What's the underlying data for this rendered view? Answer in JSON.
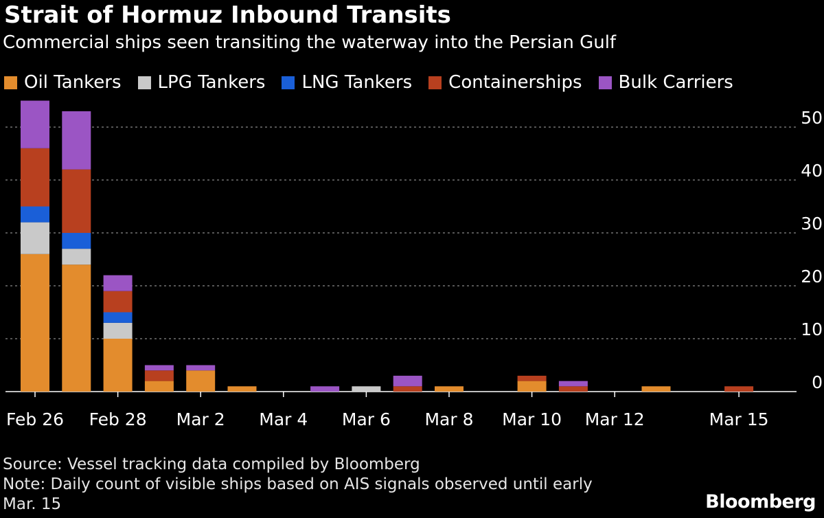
{
  "chart_data": {
    "type": "bar",
    "stacked": true,
    "title": "Strait of Hormuz Inbound Transits",
    "subtitle": "Commercial ships seen transiting the waterway into the Persian Gulf",
    "xlabel": "",
    "ylabel": "",
    "ylim": [
      0,
      55
    ],
    "y_ticks": [
      0,
      10,
      20,
      30,
      40,
      50
    ],
    "grid": true,
    "legend_position": "top",
    "categories": [
      "Feb 26",
      "Feb 27",
      "Feb 28",
      "Mar 1",
      "Mar 2",
      "Mar 3",
      "Mar 4",
      "Mar 5",
      "Mar 6",
      "Mar 7",
      "Mar 8",
      "Mar 9",
      "Mar 10",
      "Mar 11",
      "Mar 12",
      "Mar 13",
      "Mar 14",
      "Mar 15"
    ],
    "x_tick_labels": [
      "Feb 26",
      "Feb 28",
      "Mar 2",
      "Mar 4",
      "Mar 6",
      "Mar 8",
      "Mar 10",
      "Mar 12",
      "Mar 15"
    ],
    "series": [
      {
        "name": "Oil Tankers",
        "color": "#e38c2d",
        "values": [
          26,
          24,
          10,
          2,
          4,
          1,
          0,
          0,
          0,
          0,
          1,
          0,
          2,
          0,
          0,
          1,
          0,
          0
        ]
      },
      {
        "name": "LPG Tankers",
        "color": "#c9c9c9",
        "values": [
          6,
          3,
          3,
          0,
          0,
          0,
          0,
          0,
          1,
          0,
          0,
          0,
          0,
          0,
          0,
          0,
          0,
          0
        ]
      },
      {
        "name": "LNG Tankers",
        "color": "#1a5fd8",
        "values": [
          3,
          3,
          2,
          0,
          0,
          0,
          0,
          0,
          0,
          0,
          0,
          0,
          0,
          0,
          0,
          0,
          0,
          0
        ]
      },
      {
        "name": "Containerships",
        "color": "#b8401f",
        "values": [
          11,
          12,
          4,
          2,
          0,
          0,
          0,
          0,
          0,
          1,
          0,
          0,
          1,
          1,
          0,
          0,
          0,
          1
        ]
      },
      {
        "name": "Bulk Carriers",
        "color": "#9b55c4",
        "values": [
          9,
          11,
          3,
          1,
          1,
          0,
          0,
          1,
          0,
          2,
          0,
          0,
          0,
          1,
          0,
          0,
          0,
          0
        ]
      }
    ]
  },
  "footer": {
    "source": "Source: Vessel tracking data compiled by Bloomberg",
    "note_line1": "Note: Daily count of visible ships based on AIS signals observed until early",
    "note_line2": "Mar. 15"
  },
  "brand": "Bloomberg"
}
